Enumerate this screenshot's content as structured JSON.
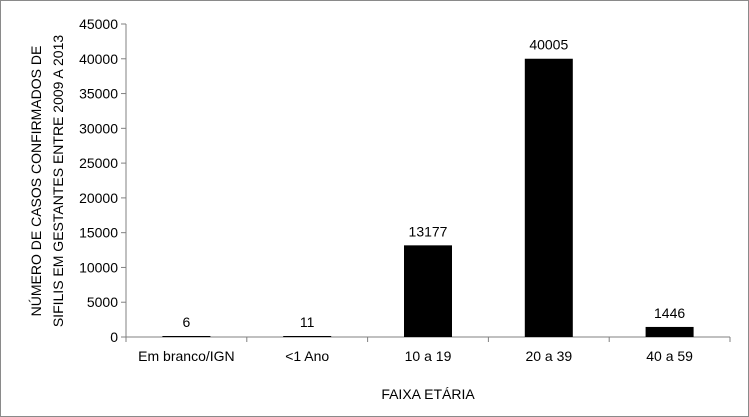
{
  "chart_data": {
    "type": "bar",
    "categories": [
      "Em branco/IGN",
      "<1 Ano",
      "10 a 19",
      "20 a 39",
      "40 a 59"
    ],
    "values": [
      6,
      11,
      13177,
      40005,
      1446
    ],
    "data_labels": [
      "6",
      "11",
      "13177",
      "40005",
      "1446"
    ],
    "xlabel": "FAIXA ETÁRIA",
    "ylabel_lines": [
      "NÚMERO DE CASOS CONFIRMADOS DE",
      "SIFILIS EM GESTANTES  ENTRE 2009 A 2013"
    ],
    "ylim": [
      0,
      45000
    ],
    "yticks": [
      0,
      5000,
      10000,
      15000,
      20000,
      25000,
      30000,
      35000,
      40000,
      45000
    ],
    "bar_color": "#000000",
    "grid": false,
    "legend": "none"
  }
}
